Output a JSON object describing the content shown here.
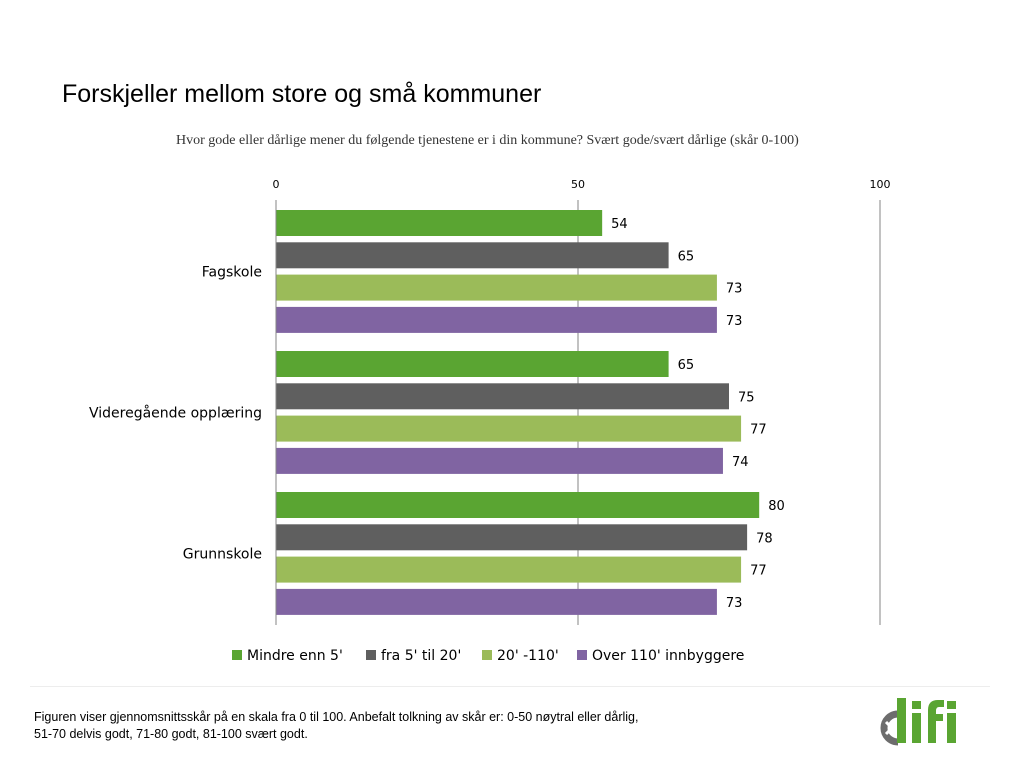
{
  "slide": {
    "title": "Forskjeller mellom store og små kommuner",
    "footnote_line1": "Figuren viser gjennomsnittsskår på en skala fra 0 til 100. Anbefalt tolkning av skår er: 0-50 nøytral eller dårlig,",
    "footnote_line2": "51-70 delvis godt, 71-80 godt, 81-100 svært godt.",
    "logo_text": "difi"
  },
  "chart_data": {
    "type": "bar",
    "orientation": "horizontal",
    "title": "Hvor gode eller dårlige mener du følgende tjenestene er i din kommune? Svært gode/svært dårlige (skår 0-100)",
    "categories": [
      "Fagskole",
      "Videregående opplæring",
      "Grunnskole"
    ],
    "series": [
      {
        "name": "Mindre enn 5'",
        "color": "#5aa532",
        "values": [
          54,
          65,
          80
        ]
      },
      {
        "name": "fra 5' til 20'",
        "color": "#5f5f5f",
        "values": [
          65,
          75,
          78
        ]
      },
      {
        "name": "20' -110'",
        "color": "#9bbb59",
        "values": [
          73,
          77,
          77
        ]
      },
      {
        "name": "Over 110' innbyggere",
        "color": "#8064a2",
        "values": [
          73,
          74,
          73
        ]
      }
    ],
    "xlim": [
      0,
      100
    ],
    "xticks": [
      0,
      50,
      100
    ],
    "axis_position": "top",
    "grid": true,
    "data_labels": true,
    "legend_position": "bottom"
  }
}
